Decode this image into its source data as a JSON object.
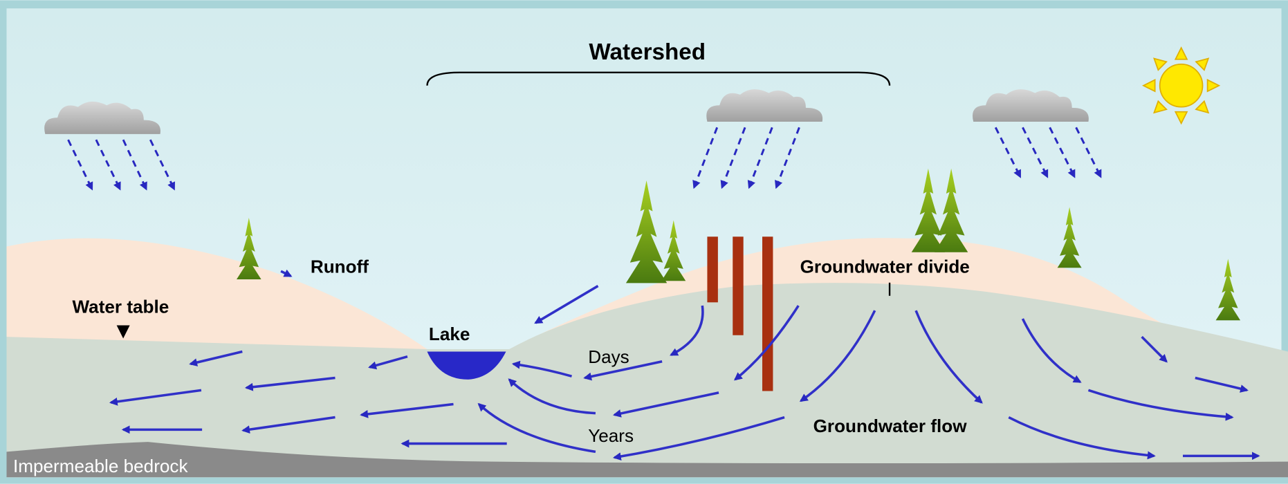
{
  "title": "Watershed",
  "labels": {
    "runoff": "Runoff",
    "water_table": "Water table",
    "lake": "Lake",
    "days": "Days",
    "years": "Years",
    "groundwater_divide": "Groundwater divide",
    "groundwater_flow": "Groundwater flow",
    "bedrock": "Impermeable bedrock"
  }
}
